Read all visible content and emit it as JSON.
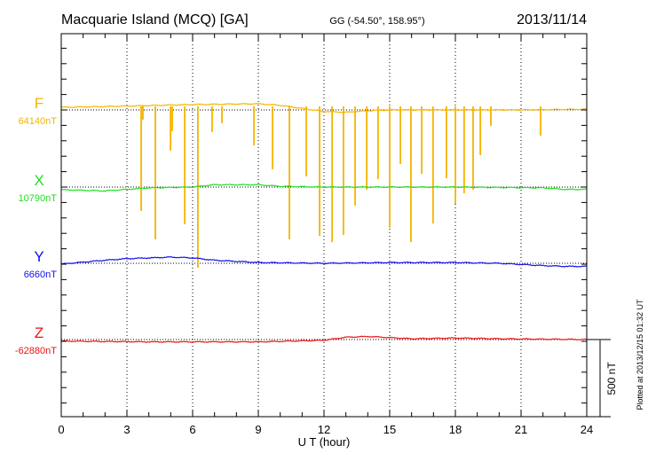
{
  "chart_data": {
    "type": "line",
    "title": "Macquarie Island (MCQ)  [GA]",
    "subtitle": "GG (-54.50°, 158.95°)",
    "date": "2013/11/14",
    "xlabel": "U T (hour)",
    "xlim": [
      0,
      24
    ],
    "xticks": [
      0,
      3,
      6,
      9,
      12,
      15,
      18,
      21,
      24
    ],
    "xtick_labels": [
      "0",
      "3",
      "6",
      "9",
      "12",
      "15",
      "18",
      "21",
      "24"
    ],
    "scale_bar": "500 nT",
    "scale_bar_nt": 500,
    "footer": "Plotted at 2013/12/15 01:32 UT",
    "grid": "dotted at every 3 hours and at each component baseline",
    "series": [
      {
        "name": "F",
        "baseline_label": "64140nT",
        "color": "#f5b400",
        "x": [
          0,
          3,
          6,
          9,
          10,
          11,
          12,
          13,
          14,
          15,
          18,
          21,
          24
        ],
        "y": [
          17,
          25,
          35,
          40,
          30,
          10,
          -10,
          -15,
          -5,
          0,
          0,
          0,
          5
        ],
        "spikes": [
          [
            3.65,
            -655
          ],
          [
            3.73,
            -63
          ],
          [
            4.3,
            -839
          ],
          [
            4.99,
            -264
          ],
          [
            5.07,
            -138
          ],
          [
            5.64,
            -741
          ],
          [
            6.24,
            -1023
          ],
          [
            6.89,
            -144
          ],
          [
            7.34,
            -86
          ],
          [
            8.8,
            -230
          ],
          [
            9.65,
            -385
          ],
          [
            10.42,
            -839
          ],
          [
            11.19,
            -431
          ],
          [
            11.8,
            -816
          ],
          [
            12.37,
            -856
          ],
          [
            12.89,
            -810
          ],
          [
            13.42,
            -620
          ],
          [
            13.95,
            -517
          ],
          [
            14.47,
            -448
          ],
          [
            15.0,
            -764
          ],
          [
            15.49,
            -351
          ],
          [
            15.97,
            -856
          ],
          [
            16.46,
            -414
          ],
          [
            16.98,
            -736
          ],
          [
            17.59,
            -443
          ],
          [
            18.0,
            -609
          ],
          [
            18.4,
            -540
          ],
          [
            18.81,
            -517
          ],
          [
            19.14,
            -293
          ],
          [
            19.62,
            -103
          ],
          [
            21.89,
            -167
          ]
        ]
      },
      {
        "name": "X",
        "baseline_label": "10790nT",
        "color": "#22dd22",
        "x": [
          0,
          2,
          4,
          6,
          7,
          9,
          10,
          12,
          18,
          22,
          23,
          24
        ],
        "y": [
          -17,
          -25,
          -5,
          0,
          15,
          15,
          5,
          0,
          0,
          -5,
          -15,
          -15
        ]
      },
      {
        "name": "Y",
        "baseline_label": "6660nT",
        "color": "#1010ee",
        "x": [
          0,
          2,
          3,
          5,
          6,
          7,
          9,
          12,
          15,
          18,
          20,
          22,
          23,
          24
        ],
        "y": [
          -5,
          20,
          30,
          40,
          35,
          20,
          5,
          0,
          5,
          5,
          0,
          -15,
          -20,
          -20
        ]
      },
      {
        "name": "Z",
        "baseline_label": "-62880nT",
        "color": "#ee1010",
        "x": [
          0,
          4,
          9,
          12,
          13,
          14,
          16,
          18,
          20,
          24
        ],
        "y": [
          -10,
          -15,
          -15,
          -5,
          15,
          20,
          5,
          10,
          5,
          0
        ]
      }
    ]
  }
}
